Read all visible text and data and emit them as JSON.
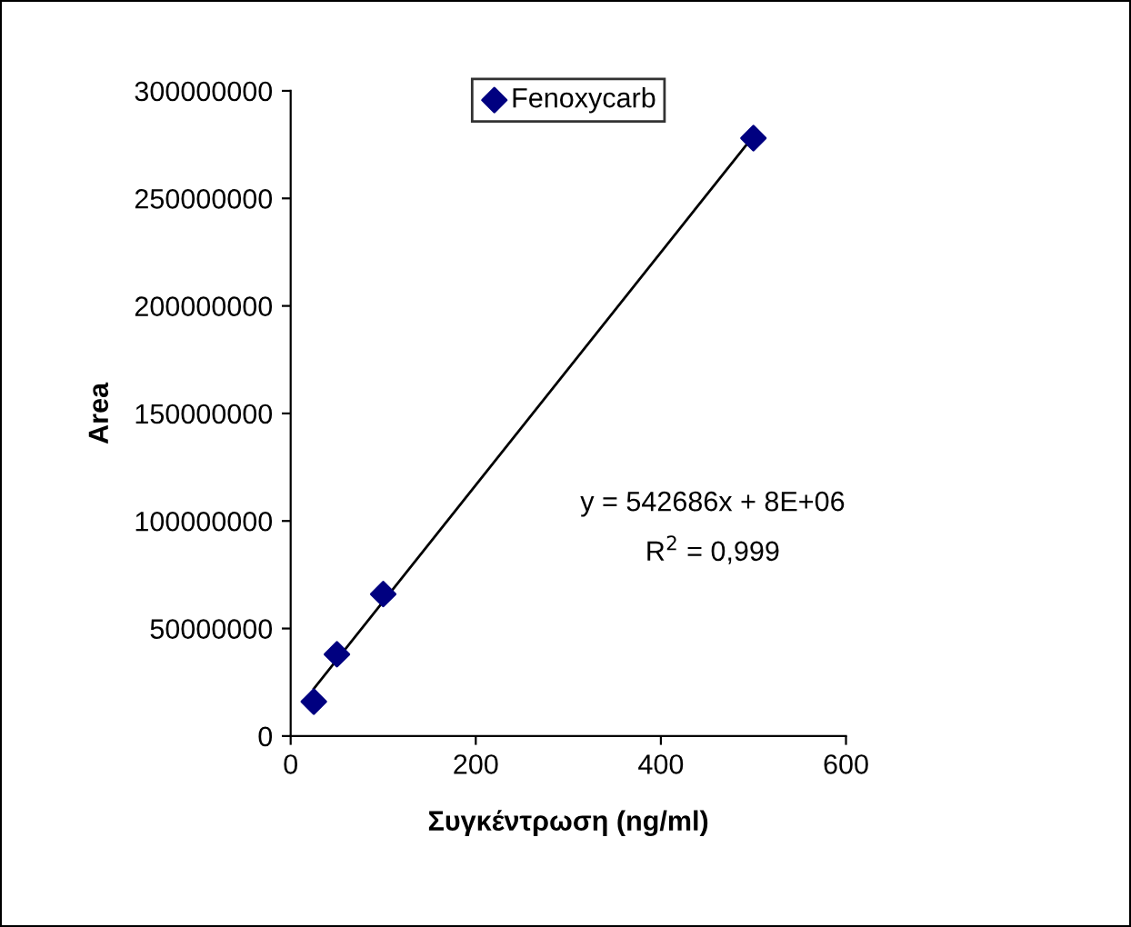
{
  "chart_data": {
    "type": "scatter",
    "xlabel": "Συγκέντρωση (ng/ml)",
    "ylabel": "Area",
    "series": [
      {
        "name": "Fenoxycarb",
        "color": "#000080",
        "marker": "diamond",
        "x": [
          25,
          50,
          100,
          500
        ],
        "values": [
          16000000,
          38000000,
          66000000,
          278000000
        ]
      },
      {
        "type": "line",
        "color": "#000000",
        "marker": "none",
        "line_style": "solid",
        "x": [
          25,
          500
        ],
        "values": [
          22000000,
          279000000
        ]
      }
    ],
    "annotations": [
      "y = 542686x + 8E+06",
      "R$^{2}$ = 0,999"
    ],
    "xlim": [
      0,
      600
    ],
    "xticks": [
      0,
      200,
      400,
      600
    ],
    "ylim": [
      0,
      300000000
    ],
    "yticks": [
      0,
      50000000,
      100000000,
      150000000,
      200000000,
      250000000,
      300000000
    ],
    "grid": false,
    "legend": "top"
  }
}
